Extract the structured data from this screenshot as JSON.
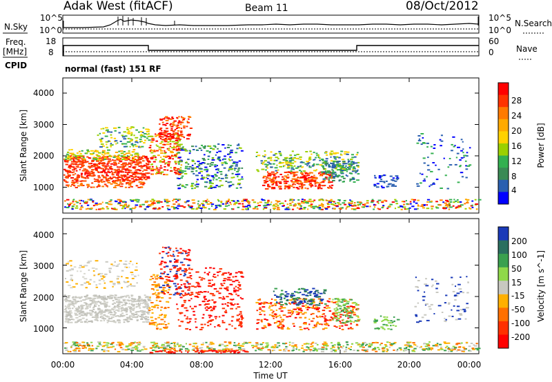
{
  "header": {
    "title": "Adak West (fitACF)",
    "beam": "Beam 11",
    "date": "08/Oct/2012"
  },
  "panels": {
    "nsky": {
      "left_label": "N.Sky",
      "ticks": [
        "10^5",
        "10^0"
      ],
      "right_label": "N.Search",
      "right_ticks": [
        "10^5",
        "10^0"
      ]
    },
    "freq": {
      "left_label_top": "Freq.",
      "left_label_unit": "[MHz]",
      "cpid_label": "CPID",
      "ticks": [
        "18",
        "8"
      ],
      "right_label": "Nave",
      "right_ticks": [
        "60",
        "0"
      ],
      "mode_text": "normal (fast) 151 RF"
    }
  },
  "chart_data": [
    {
      "type": "heatmap",
      "name": "power",
      "xlabel": "",
      "ylabel": "Slant Range [km]",
      "y_ticks": [
        "4000",
        "3000",
        "2000",
        "1000"
      ],
      "ylim": [
        180,
        4600
      ],
      "xlim": [
        0,
        24
      ],
      "colorbar": {
        "label": "Power [dB]",
        "tick_labels": [
          "28",
          "24",
          "20",
          "16",
          "12",
          "8",
          "4"
        ],
        "colors": [
          "#ff0000",
          "#ff3300",
          "#ff7a00",
          "#ffaa00",
          "#ffd200",
          "#9bd000",
          "#33b050",
          "#3a8a55",
          "#2a5fb0",
          "#0000ff"
        ]
      }
    },
    {
      "type": "heatmap",
      "name": "velocity",
      "xlabel": "Time UT",
      "ylabel": "Slant Range [km]",
      "y_ticks": [
        "4000",
        "3000",
        "2000",
        "1000"
      ],
      "ylim": [
        180,
        4600
      ],
      "xlim": [
        0,
        24
      ],
      "x_ticks": [
        "00:00",
        "04:00",
        "08:00",
        "12:00",
        "16:00",
        "20:00",
        "00:00"
      ],
      "colorbar": {
        "label": "Velocity [m s^-1]",
        "tick_labels": [
          "200",
          "100",
          "50",
          "15",
          "-15",
          "-50",
          "-100",
          "-200"
        ],
        "colors": [
          "#1a3ab8",
          "#2a6f5f",
          "#3aa04f",
          "#8fd84a",
          "#c8c8c0",
          "#ffb000",
          "#ff7000",
          "#ff3000",
          "#ff0000"
        ]
      }
    }
  ]
}
